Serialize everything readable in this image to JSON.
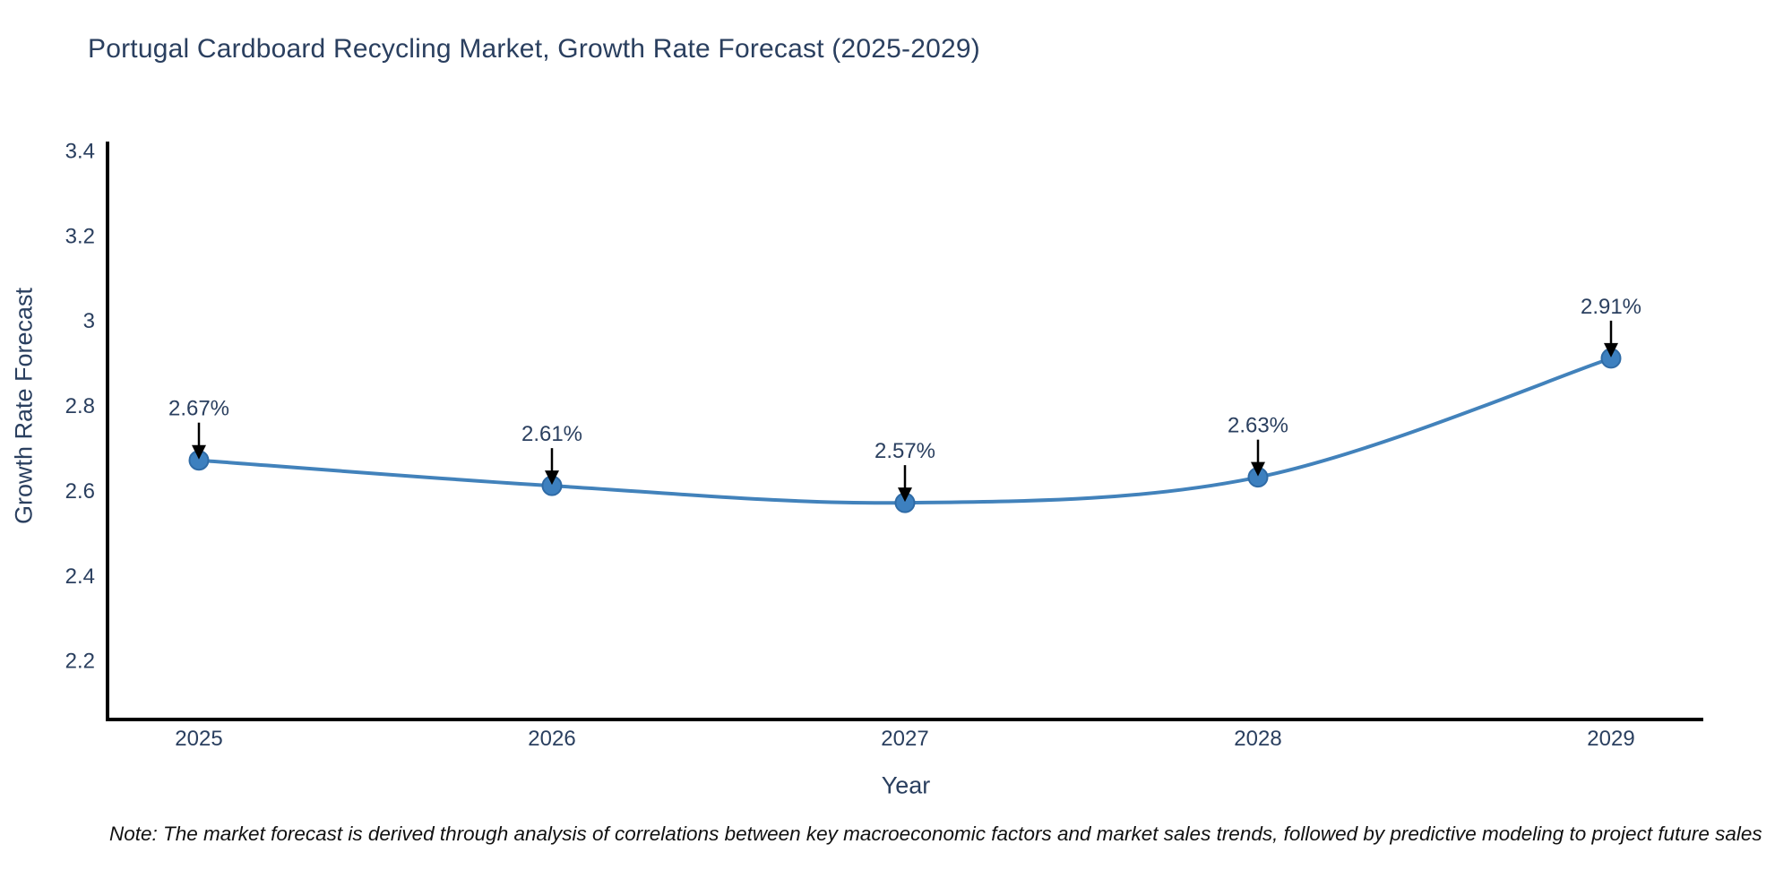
{
  "chart_data": {
    "type": "line",
    "title": "Portugal Cardboard Recycling Market, Growth Rate Forecast (2025-2029)",
    "xlabel": "Year",
    "ylabel": "Growth Rate Forecast",
    "categories": [
      "2025",
      "2026",
      "2027",
      "2028",
      "2029"
    ],
    "series": [
      {
        "name": "Growth Rate Forecast",
        "values": [
          2.67,
          2.61,
          2.57,
          2.63,
          2.91
        ]
      }
    ],
    "point_labels": [
      "2.67%",
      "2.61%",
      "2.57%",
      "2.63%",
      "2.91%"
    ],
    "yticks": [
      2.2,
      2.4,
      2.6,
      2.8,
      3,
      3.2,
      3.4
    ],
    "ylim": [
      2.06,
      3.42
    ],
    "grid": false,
    "legend": "none",
    "annotation_style": "value label with downward arrow to each point"
  },
  "colors": {
    "line": "#4282bb",
    "marker_fill": "#3d80bf",
    "marker_edge": "#2f6ba6",
    "axis": "#000000",
    "text": "#2a3f5f",
    "annotation_arrow": "#000000",
    "note_text": "#111111"
  },
  "note": {
    "text": "Note: The market forecast is derived through analysis of correlations between key macroeconomic factors and market sales trends, followed by predictive modeling to project future sales"
  }
}
